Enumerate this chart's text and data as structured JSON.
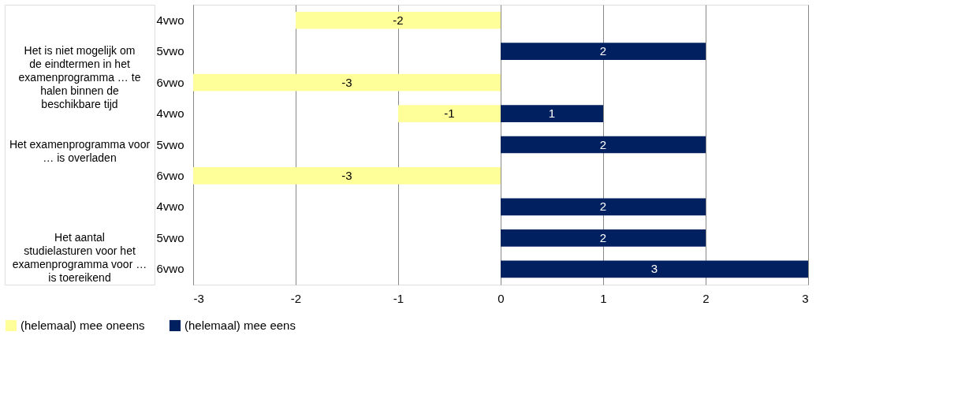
{
  "chart_data": {
    "type": "bar",
    "orientation": "horizontal",
    "categories": [
      "4vwo",
      "5vwo",
      "6vwo",
      "4vwo",
      "5vwo",
      "6vwo",
      "4vwo",
      "5vwo",
      "6vwo"
    ],
    "series": [
      {
        "name": "(helemaal) mee oneens",
        "color": "#ffff99",
        "values": [
          -2,
          null,
          -3,
          -1,
          null,
          -3,
          null,
          null,
          null
        ]
      },
      {
        "name": "(helemaal) mee eens",
        "color": "#002060",
        "values": [
          null,
          2,
          null,
          1,
          2,
          null,
          2,
          2,
          3
        ]
      }
    ],
    "xlim": [
      -3,
      3
    ],
    "xticks": [
      -3,
      -2,
      -1,
      0,
      1,
      2,
      3
    ],
    "grid": "x",
    "legend": "bottom",
    "data_labels": true,
    "annotations": [
      "Het is niet mogelijk om de eindtermen in het examenprogramma … te halen binnen de beschikbare tijd",
      "Het examenprogramma voor … is overladen",
      "Het aantal studielasturen voor het examenprogramma voor … is toereikend"
    ]
  }
}
